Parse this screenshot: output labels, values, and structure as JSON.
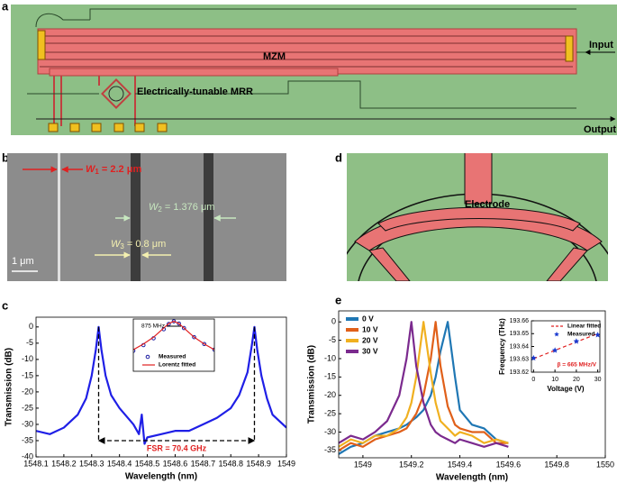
{
  "panels": {
    "labels": [
      "a",
      "b",
      "c",
      "d",
      "e"
    ],
    "a": {
      "mzm": "MZM",
      "mrr": "Electrically-tunable MRR",
      "input": "Input",
      "output": "Output"
    },
    "b": {
      "w1": {
        "var": "W",
        "sub": "1",
        "rest": " = 2.2 μm"
      },
      "w2": {
        "var": "W",
        "sub": "2",
        "rest": " = 1.376 μm"
      },
      "w3": {
        "var": "W",
        "sub": "3",
        "rest": " = 0.8 μm"
      },
      "scale": "1 μm"
    },
    "d": {
      "electrode": "Electrode"
    }
  },
  "chart_data": [
    {
      "type": "line",
      "x": [
        1548.1,
        1548.15,
        1548.2,
        1548.25,
        1548.28,
        1548.3,
        1548.315,
        1548.325,
        1548.335,
        1548.35,
        1548.37,
        1548.4,
        1548.45,
        1548.47,
        1548.48,
        1548.49,
        1548.5,
        1548.55,
        1548.6,
        1548.65,
        1548.7,
        1548.75,
        1548.8,
        1548.83,
        1548.86,
        1548.875,
        1548.885,
        1548.895,
        1548.91,
        1548.93,
        1548.95,
        1549
      ],
      "series": [
        {
          "color": "#1f1fe6",
          "values": [
            -32,
            -33,
            -31,
            -27,
            -22,
            -15,
            -7,
            0,
            -7,
            -15,
            -21,
            -25,
            -30,
            -33,
            -27,
            -36,
            -34,
            -33,
            -32,
            -32,
            -30,
            -28,
            -25,
            -21,
            -14,
            -6,
            0,
            -7,
            -15,
            -22,
            -27,
            -31
          ]
        }
      ],
      "xlim": [
        1548.1,
        1549
      ],
      "xticks": [
        1548.1,
        1548.2,
        1548.3,
        1548.4,
        1548.5,
        1548.6,
        1548.7,
        1548.8,
        1548.9,
        1549
      ],
      "ylim": [
        -40,
        3
      ],
      "yticks": [
        0,
        -5,
        -10,
        -15,
        -20,
        -25,
        -30,
        -35,
        -40
      ],
      "xlabel": "Wavelength (nm)",
      "ylabel": "Transmission (dB)",
      "annotation": "FSR = 70.4 GHz"
    },
    {
      "type": "line",
      "x": [
        -4,
        -3,
        -2,
        -1,
        -0.5,
        0,
        0.5,
        1,
        2,
        3,
        4
      ],
      "series": [
        {
          "name": "Measured",
          "color": "#1a1aa0",
          "marker": "circle",
          "values": [
            -13,
            -10.5,
            -7.5,
            -3.5,
            -1.2,
            0,
            -1,
            -3,
            -7,
            -10,
            -12.5
          ]
        },
        {
          "name": "Lorentz fitted",
          "color": "#e02020",
          "values": [
            -12.5,
            -10,
            -7,
            -3,
            -1,
            0,
            -1,
            -3,
            -7,
            -10,
            -12.5
          ]
        }
      ],
      "xlim": [
        -4,
        4
      ],
      "ylim": [
        -22,
        1
      ],
      "annotation": "875 MHz"
    },
    {
      "type": "line",
      "x": [
        1548.9,
        1548.95,
        1549,
        1549.05,
        1549.1,
        1549.15,
        1549.18,
        1549.2,
        1549.22,
        1549.25,
        1549.28,
        1549.3,
        1549.32,
        1549.35,
        1549.38,
        1549.4,
        1549.45,
        1549.5,
        1549.55,
        1549.6
      ],
      "series": [
        {
          "name": "0  V",
          "color": "#1f77b4",
          "values": [
            -36,
            -34,
            -33,
            -31,
            -30,
            -29,
            -28,
            -27,
            -26,
            -24,
            -20,
            -15,
            -8,
            0,
            -15,
            -24,
            -28,
            -29,
            -32,
            -33
          ]
        },
        {
          "name": "10 V",
          "color": "#e0601a",
          "values": [
            -35,
            -33,
            -34,
            -32,
            -31,
            -30,
            -29,
            -27,
            -25,
            -20,
            -10,
            0,
            -12,
            -23,
            -28,
            -29,
            -30,
            -30,
            -33,
            -33
          ]
        },
        {
          "name": "20 V",
          "color": "#f0b020",
          "values": [
            -34,
            -32,
            -33,
            -31,
            -31,
            -29,
            -26,
            -22,
            -15,
            0,
            -14,
            -22,
            -27,
            -29,
            -31,
            -30,
            -31,
            -33,
            -32,
            -33
          ]
        },
        {
          "name": "30 V",
          "color": "#7b2a8e",
          "values": [
            -33,
            -31,
            -32,
            -30,
            -27,
            -20,
            -10,
            0,
            -12,
            -22,
            -28,
            -30,
            -31,
            -32,
            -33,
            -32,
            -33,
            -34,
            -33,
            -34
          ]
        }
      ],
      "xlim": [
        1548.9,
        1550
      ],
      "xticks": [
        1549,
        1549.2,
        1549.4,
        1549.6,
        1549.8,
        1550
      ],
      "ylim": [
        -37,
        3
      ],
      "yticks": [
        0,
        -5,
        -10,
        -15,
        -20,
        -25,
        -30,
        -35
      ],
      "xlabel": "Wavelength (nm)",
      "ylabel": "Transmission (dB)",
      "legend": "upper left"
    },
    {
      "type": "line",
      "x": [
        0,
        10,
        20,
        30
      ],
      "series": [
        {
          "name": "Linear fitted",
          "color": "#e02020",
          "dashed": true,
          "values": [
            193.6305,
            193.637,
            193.6435,
            193.65
          ]
        },
        {
          "name": "Measured",
          "color": "#1a3ad0",
          "marker": "star",
          "values": [
            193.631,
            193.637,
            193.644,
            193.649
          ]
        }
      ],
      "xlim": [
        -1,
        31
      ],
      "xticks": [
        0,
        10,
        20,
        30
      ],
      "ylim": [
        193.62,
        193.66
      ],
      "yticks": [
        193.62,
        193.63,
        193.64,
        193.65,
        193.66
      ],
      "xlabel": "Voltage (V)",
      "ylabel": "Frequency (THz)",
      "annotation": "β = 665 MHz/V"
    }
  ]
}
